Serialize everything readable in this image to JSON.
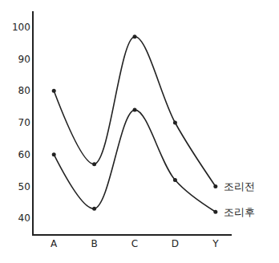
{
  "chart_data": {
    "type": "line",
    "categories": [
      "A",
      "B",
      "C",
      "D",
      "Y"
    ],
    "series": [
      {
        "name": "조리전",
        "color": "#222222",
        "values": [
          80,
          57,
          97,
          70,
          50
        ],
        "marker": "circle",
        "line_style": "solid"
      },
      {
        "name": "조리후",
        "color": "#222222",
        "values": [
          60,
          43,
          74,
          52,
          42
        ],
        "marker": "circle",
        "line_style": "solid"
      }
    ],
    "ylim": [
      35,
      105
    ],
    "yticks": [
      40,
      50,
      60,
      70,
      80,
      90,
      100
    ],
    "grid": false
  }
}
